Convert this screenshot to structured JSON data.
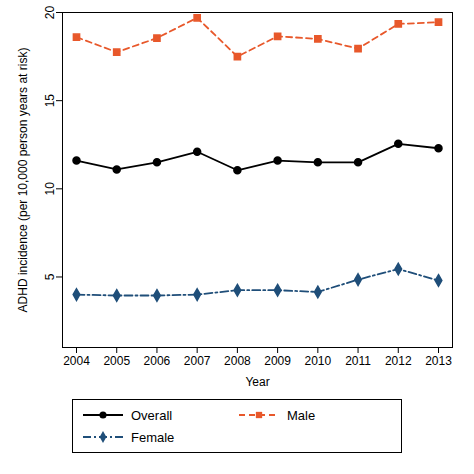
{
  "chart_data": {
    "type": "line",
    "y_label": "ADHD incidence (per 10,000 person years at risk)",
    "x_label": "Year",
    "x": [
      2004,
      2005,
      2006,
      2007,
      2008,
      2009,
      2010,
      2011,
      2012,
      2013
    ],
    "xlim": [
      2004,
      2013
    ],
    "xticks": [
      2004,
      2005,
      2006,
      2007,
      2008,
      2009,
      2010,
      2011,
      2012,
      2013
    ],
    "ylim": [
      1,
      20
    ],
    "yticks": [
      5,
      10,
      15,
      20
    ],
    "legend": "bottom",
    "series": [
      {
        "name": "Overall",
        "color": "#000000",
        "marker": "circle",
        "line_style": "solid",
        "values": [
          11.6,
          11.1,
          11.5,
          12.1,
          11.05,
          11.6,
          11.5,
          11.5,
          12.55,
          12.3
        ]
      },
      {
        "name": "Male",
        "color": "#e8582b",
        "marker": "square",
        "line_style": "dashed",
        "values": [
          18.6,
          17.75,
          18.55,
          19.7,
          17.5,
          18.65,
          18.5,
          17.95,
          19.35,
          19.45
        ]
      },
      {
        "name": "Female",
        "color": "#1f4e79",
        "marker": "diamond",
        "line_style": "dashdot",
        "values": [
          4.0,
          3.95,
          3.95,
          4.0,
          4.25,
          4.25,
          4.15,
          4.85,
          5.45,
          4.8
        ]
      }
    ]
  }
}
